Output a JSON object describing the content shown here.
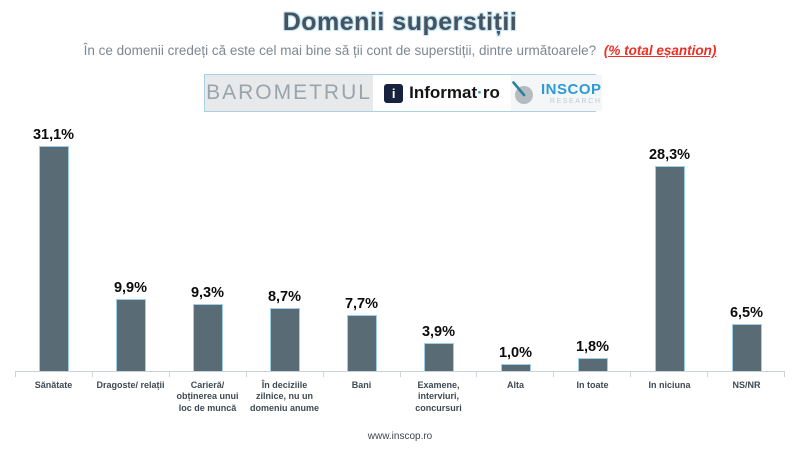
{
  "header": {
    "title": "Domenii superstiții",
    "subtitle": "În ce domenii credeți că este cel mai bine să ții cont de superstiții, dintre următoarele?",
    "subtitle_highlight": "(% total eșantion)"
  },
  "banner": {
    "barometrul_label": "BAROMETRUL",
    "informat_icon_letter": "i",
    "informat_name": "Informat",
    "informat_dot": "·",
    "informat_suffix": "ro",
    "inscop_name": "INSCOP",
    "inscop_sub": "RESEARCH"
  },
  "chart_data": {
    "type": "bar",
    "title": "Domenii superstiții",
    "categories": [
      "Sănătate",
      "Dragoste/ relații",
      "Carieră/ obținerea unui loc de muncă",
      "În deciziile zilnice, nu un domeniu anume",
      "Bani",
      "Examene, interviuri, concursuri",
      "Alta",
      "In toate",
      "In niciuna",
      "NS/NR"
    ],
    "values": [
      31.1,
      9.9,
      9.3,
      8.7,
      7.7,
      3.9,
      1.0,
      1.8,
      28.3,
      6.5
    ],
    "value_labels": [
      "31,1%",
      "9,9%",
      "9,3%",
      "8,7%",
      "7,7%",
      "3,9%",
      "1,0%",
      "1,8%",
      "28,3%",
      "6,5%"
    ],
    "xlabel": "",
    "ylabel": "",
    "ylim": [
      0,
      34
    ],
    "grid": false,
    "legend": false,
    "bar_color": "#596b75",
    "bar_border_color": "#9fcfe6"
  },
  "footer": {
    "url": "www.inscop.ro"
  }
}
